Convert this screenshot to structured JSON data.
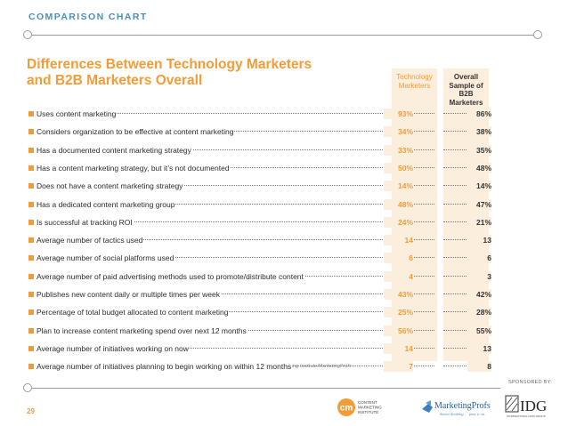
{
  "header": {
    "label": "COMPARISON CHART"
  },
  "title": {
    "line1": "Differences Between Technology Marketers",
    "line2": "and B2B Marketers Overall"
  },
  "columns": {
    "tech": [
      "Technology",
      "Marketers"
    ],
    "overall": [
      "Overall",
      "Sample of",
      "B2B",
      "Marketers"
    ]
  },
  "rows": [
    {
      "label": "Uses content marketing",
      "tech": "93%",
      "overall": "86%"
    },
    {
      "label": "Considers organization to be effective at content marketing",
      "tech": "34%",
      "overall": "38%"
    },
    {
      "label": "Has a documented content marketing strategy",
      "tech": "33%",
      "overall": "35%"
    },
    {
      "label": "Has a content marketing strategy, but it’s not documented",
      "tech": "50%",
      "overall": "48%"
    },
    {
      "label": "Does not have a content marketing strategy",
      "tech": "14%",
      "overall": "14%"
    },
    {
      "label": "Has a dedicated content marketing group",
      "tech": "48%",
      "overall": "47%"
    },
    {
      "label": "Is successful at tracking ROI",
      "tech": "24%",
      "overall": "21%"
    },
    {
      "label": "Average number of tactics used",
      "tech": "14",
      "overall": "13"
    },
    {
      "label": "Average number of social platforms used",
      "tech": "6",
      "overall": "6"
    },
    {
      "label": "Average number of paid advertising methods used to promote/distribute content",
      "tech": "4",
      "overall": "3"
    },
    {
      "label": "Publishes new content daily or multiple times per week",
      "tech": "43%",
      "overall": "42%"
    },
    {
      "label": "Percentage of total budget allocated to content marketing",
      "tech": "25%",
      "overall": "28%"
    },
    {
      "label": "Plan to increase content marketing spend over next 12 months",
      "tech": "56%",
      "overall": "55%"
    },
    {
      "label": "Average number of initiatives working on now",
      "tech": "14",
      "overall": "13"
    },
    {
      "label": "Average number of initiatives planning to begin working on within 12 months",
      "tech": "7",
      "overall": "8"
    }
  ],
  "source": "2015 B2B Technology Trends—North America: Content Marketing Institute/MarketingProfs",
  "page_number": "29",
  "sponsored_by": "SPONSORED BY:",
  "logos": {
    "cmi_mark": "cm",
    "cmi_text": [
      "CONTENT",
      "MARKETING",
      "INSTITUTE"
    ],
    "mp_name": "MarketingProfs",
    "mp_tagline": "Smart thinking … pass it on.",
    "idg_name": "IDG",
    "idg_sub": "INTERNATIONAL DATA GROUP"
  },
  "colors": {
    "accent": "#f29c38",
    "header_blue": "#4a90b8",
    "column_fill": "#fbeedd"
  }
}
